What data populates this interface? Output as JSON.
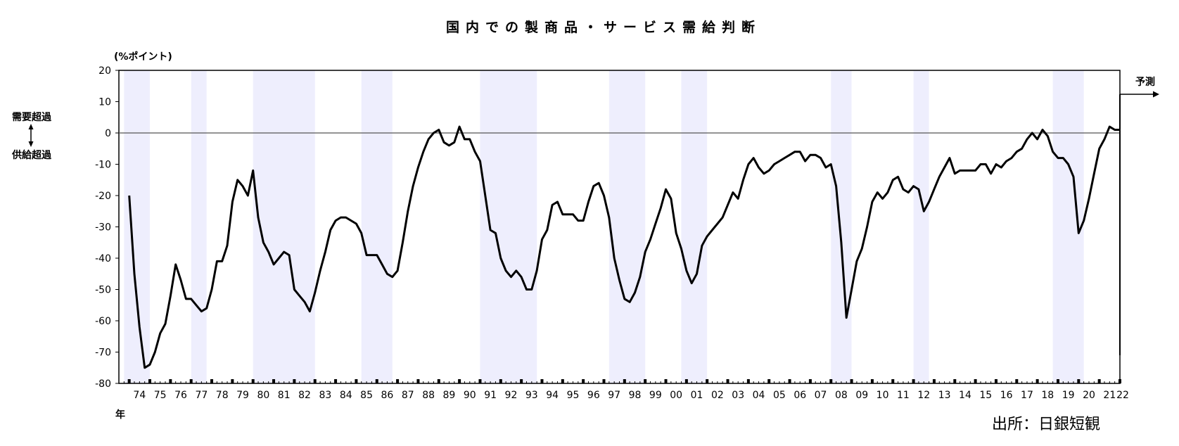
{
  "chart_data": {
    "type": "line",
    "title": "国内での製商品・サービス需給判断",
    "ylabel": "(%ポイント)",
    "xlabel": "年",
    "ylim": [
      -80,
      20
    ],
    "yticks": [
      20,
      10,
      0,
      -10,
      -20,
      -30,
      -40,
      -50,
      -60,
      -70,
      -80
    ],
    "xlim": [
      1973.5,
      2022.0
    ],
    "year_labels": [
      "74",
      "75",
      "76",
      "77",
      "78",
      "79",
      "80",
      "81",
      "82",
      "83",
      "84",
      "85",
      "86",
      "87",
      "88",
      "89",
      "90",
      "91",
      "92",
      "93",
      "94",
      "95",
      "96",
      "97",
      "98",
      "99",
      "00",
      "01",
      "02",
      "03",
      "04",
      "05",
      "06",
      "07",
      "08",
      "09",
      "10",
      "11",
      "12",
      "13",
      "14",
      "15",
      "16",
      "17",
      "18",
      "19",
      "20",
      "21",
      "22"
    ],
    "side_label_top": "需要超過",
    "side_label_bottom": "供給超過",
    "forecast_label": "予測",
    "source": "出所：日銀短観",
    "grid": false,
    "shaded_periods": [
      [
        1973.75,
        1975.0
      ],
      [
        1977.0,
        1977.75
      ],
      [
        1980.0,
        1983.0
      ],
      [
        1985.25,
        1986.75
      ],
      [
        1991.0,
        1993.75
      ],
      [
        1997.25,
        1999.0
      ],
      [
        2000.75,
        2002.0
      ],
      [
        2008.0,
        2009.0
      ],
      [
        2012.0,
        2012.75
      ],
      [
        2018.75,
        2020.25
      ]
    ],
    "series": [
      {
        "name": "",
        "points": [
          [
            1974.0,
            -20
          ],
          [
            1974.25,
            -45
          ],
          [
            1974.5,
            -62
          ],
          [
            1974.75,
            -75
          ],
          [
            1975.0,
            -74
          ],
          [
            1975.25,
            -70
          ],
          [
            1975.5,
            -64
          ],
          [
            1975.75,
            -61
          ],
          [
            1976.0,
            -52
          ],
          [
            1976.25,
            -42
          ],
          [
            1976.5,
            -47
          ],
          [
            1976.75,
            -53
          ],
          [
            1977.0,
            -53
          ],
          [
            1977.25,
            -55
          ],
          [
            1977.5,
            -57
          ],
          [
            1977.75,
            -56
          ],
          [
            1978.0,
            -50
          ],
          [
            1978.25,
            -41
          ],
          [
            1978.5,
            -41
          ],
          [
            1978.75,
            -36
          ],
          [
            1979.0,
            -22
          ],
          [
            1979.25,
            -15
          ],
          [
            1979.5,
            -17
          ],
          [
            1979.75,
            -20
          ],
          [
            1980.0,
            -12
          ],
          [
            1980.25,
            -27
          ],
          [
            1980.5,
            -35
          ],
          [
            1980.75,
            -38
          ],
          [
            1981.0,
            -42
          ],
          [
            1981.25,
            -40
          ],
          [
            1981.5,
            -38
          ],
          [
            1981.75,
            -39
          ],
          [
            1982.0,
            -50
          ],
          [
            1982.25,
            -52
          ],
          [
            1982.5,
            -54
          ],
          [
            1982.75,
            -57
          ],
          [
            1983.0,
            -51
          ],
          [
            1983.25,
            -44
          ],
          [
            1983.5,
            -38
          ],
          [
            1983.75,
            -31
          ],
          [
            1984.0,
            -28
          ],
          [
            1984.25,
            -27
          ],
          [
            1984.5,
            -27
          ],
          [
            1984.75,
            -28
          ],
          [
            1985.0,
            -29
          ],
          [
            1985.25,
            -32
          ],
          [
            1985.5,
            -39
          ],
          [
            1985.75,
            -39
          ],
          [
            1986.0,
            -39
          ],
          [
            1986.25,
            -42
          ],
          [
            1986.5,
            -45
          ],
          [
            1986.75,
            -46
          ],
          [
            1987.0,
            -44
          ],
          [
            1987.25,
            -35
          ],
          [
            1987.5,
            -25
          ],
          [
            1987.75,
            -17
          ],
          [
            1988.0,
            -11
          ],
          [
            1988.25,
            -6
          ],
          [
            1988.5,
            -2
          ],
          [
            1988.75,
            0
          ],
          [
            1989.0,
            1
          ],
          [
            1989.25,
            -3
          ],
          [
            1989.5,
            -4
          ],
          [
            1989.75,
            -3
          ],
          [
            1990.0,
            2
          ],
          [
            1990.25,
            -2
          ],
          [
            1990.5,
            -2
          ],
          [
            1990.75,
            -6
          ],
          [
            1991.0,
            -9
          ],
          [
            1991.25,
            -20
          ],
          [
            1991.5,
            -31
          ],
          [
            1991.75,
            -32
          ],
          [
            1992.0,
            -40
          ],
          [
            1992.25,
            -44
          ],
          [
            1992.5,
            -46
          ],
          [
            1992.75,
            -44
          ],
          [
            1993.0,
            -46
          ],
          [
            1993.25,
            -50
          ],
          [
            1993.5,
            -50
          ],
          [
            1993.75,
            -44
          ],
          [
            1994.0,
            -34
          ],
          [
            1994.25,
            -31
          ],
          [
            1994.5,
            -23
          ],
          [
            1994.75,
            -22
          ],
          [
            1995.0,
            -26
          ],
          [
            1995.25,
            -26
          ],
          [
            1995.5,
            -26
          ],
          [
            1995.75,
            -28
          ],
          [
            1996.0,
            -28
          ],
          [
            1996.25,
            -22
          ],
          [
            1996.5,
            -17
          ],
          [
            1996.75,
            -16
          ],
          [
            1997.0,
            -20
          ],
          [
            1997.25,
            -27
          ],
          [
            1997.5,
            -40
          ],
          [
            1997.75,
            -47
          ],
          [
            1998.0,
            -53
          ],
          [
            1998.25,
            -54
          ],
          [
            1998.5,
            -51
          ],
          [
            1998.75,
            -46
          ],
          [
            1999.0,
            -38
          ],
          [
            1999.25,
            -34
          ],
          [
            1999.5,
            -29
          ],
          [
            1999.75,
            -24
          ],
          [
            2000.0,
            -18
          ],
          [
            2000.25,
            -21
          ],
          [
            2000.5,
            -32
          ],
          [
            2000.75,
            -37
          ],
          [
            2001.0,
            -44
          ],
          [
            2001.25,
            -48
          ],
          [
            2001.5,
            -45
          ],
          [
            2001.75,
            -36
          ],
          [
            2002.0,
            -33
          ],
          [
            2002.25,
            -31
          ],
          [
            2002.5,
            -29
          ],
          [
            2002.75,
            -27
          ],
          [
            2003.0,
            -23
          ],
          [
            2003.25,
            -19
          ],
          [
            2003.5,
            -21
          ],
          [
            2003.75,
            -15
          ],
          [
            2004.0,
            -10
          ],
          [
            2004.25,
            -8
          ],
          [
            2004.5,
            -11
          ],
          [
            2004.75,
            -13
          ],
          [
            2005.0,
            -12
          ],
          [
            2005.25,
            -10
          ],
          [
            2005.5,
            -9
          ],
          [
            2005.75,
            -8
          ],
          [
            2006.0,
            -7
          ],
          [
            2006.25,
            -6
          ],
          [
            2006.5,
            -6
          ],
          [
            2006.75,
            -9
          ],
          [
            2007.0,
            -7
          ],
          [
            2007.25,
            -7
          ],
          [
            2007.5,
            -8
          ],
          [
            2007.75,
            -11
          ],
          [
            2008.0,
            -10
          ],
          [
            2008.25,
            -17
          ],
          [
            2008.5,
            -35
          ],
          [
            2008.75,
            -59
          ],
          [
            2009.0,
            -50
          ],
          [
            2009.25,
            -41
          ],
          [
            2009.5,
            -37
          ],
          [
            2009.75,
            -30
          ],
          [
            2010.0,
            -22
          ],
          [
            2010.25,
            -19
          ],
          [
            2010.5,
            -21
          ],
          [
            2010.75,
            -19
          ],
          [
            2011.0,
            -15
          ],
          [
            2011.25,
            -14
          ],
          [
            2011.5,
            -18
          ],
          [
            2011.75,
            -19
          ],
          [
            2012.0,
            -17
          ],
          [
            2012.25,
            -18
          ],
          [
            2012.5,
            -25
          ],
          [
            2012.75,
            -22
          ],
          [
            2013.0,
            -18
          ],
          [
            2013.25,
            -14
          ],
          [
            2013.5,
            -11
          ],
          [
            2013.75,
            -8
          ],
          [
            2014.0,
            -13
          ],
          [
            2014.25,
            -12
          ],
          [
            2014.5,
            -12
          ],
          [
            2014.75,
            -12
          ],
          [
            2015.0,
            -12
          ],
          [
            2015.25,
            -10
          ],
          [
            2015.5,
            -10
          ],
          [
            2015.75,
            -13
          ],
          [
            2016.0,
            -10
          ],
          [
            2016.25,
            -11
          ],
          [
            2016.5,
            -9
          ],
          [
            2016.75,
            -8
          ],
          [
            2017.0,
            -6
          ],
          [
            2017.25,
            -5
          ],
          [
            2017.5,
            -2
          ],
          [
            2017.75,
            0
          ],
          [
            2018.0,
            -2
          ],
          [
            2018.25,
            1
          ],
          [
            2018.5,
            -1
          ],
          [
            2018.75,
            -6
          ],
          [
            2019.0,
            -8
          ],
          [
            2019.25,
            -8
          ],
          [
            2019.5,
            -10
          ],
          [
            2019.75,
            -14
          ],
          [
            2020.0,
            -32
          ],
          [
            2020.25,
            -28
          ],
          [
            2020.5,
            -21
          ],
          [
            2020.75,
            -13
          ],
          [
            2021.0,
            -5
          ],
          [
            2021.25,
            -2
          ],
          [
            2021.5,
            2
          ],
          [
            2021.75,
            1
          ],
          [
            2022.0,
            1
          ]
        ]
      }
    ]
  }
}
